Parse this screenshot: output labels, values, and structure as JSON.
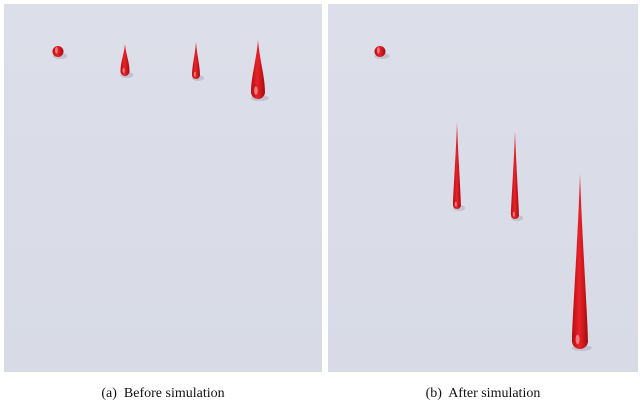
{
  "figure": {
    "subfigures": [
      {
        "caption": "(a)  Before simulation"
      },
      {
        "caption": "(b)  After simulation"
      }
    ]
  }
}
